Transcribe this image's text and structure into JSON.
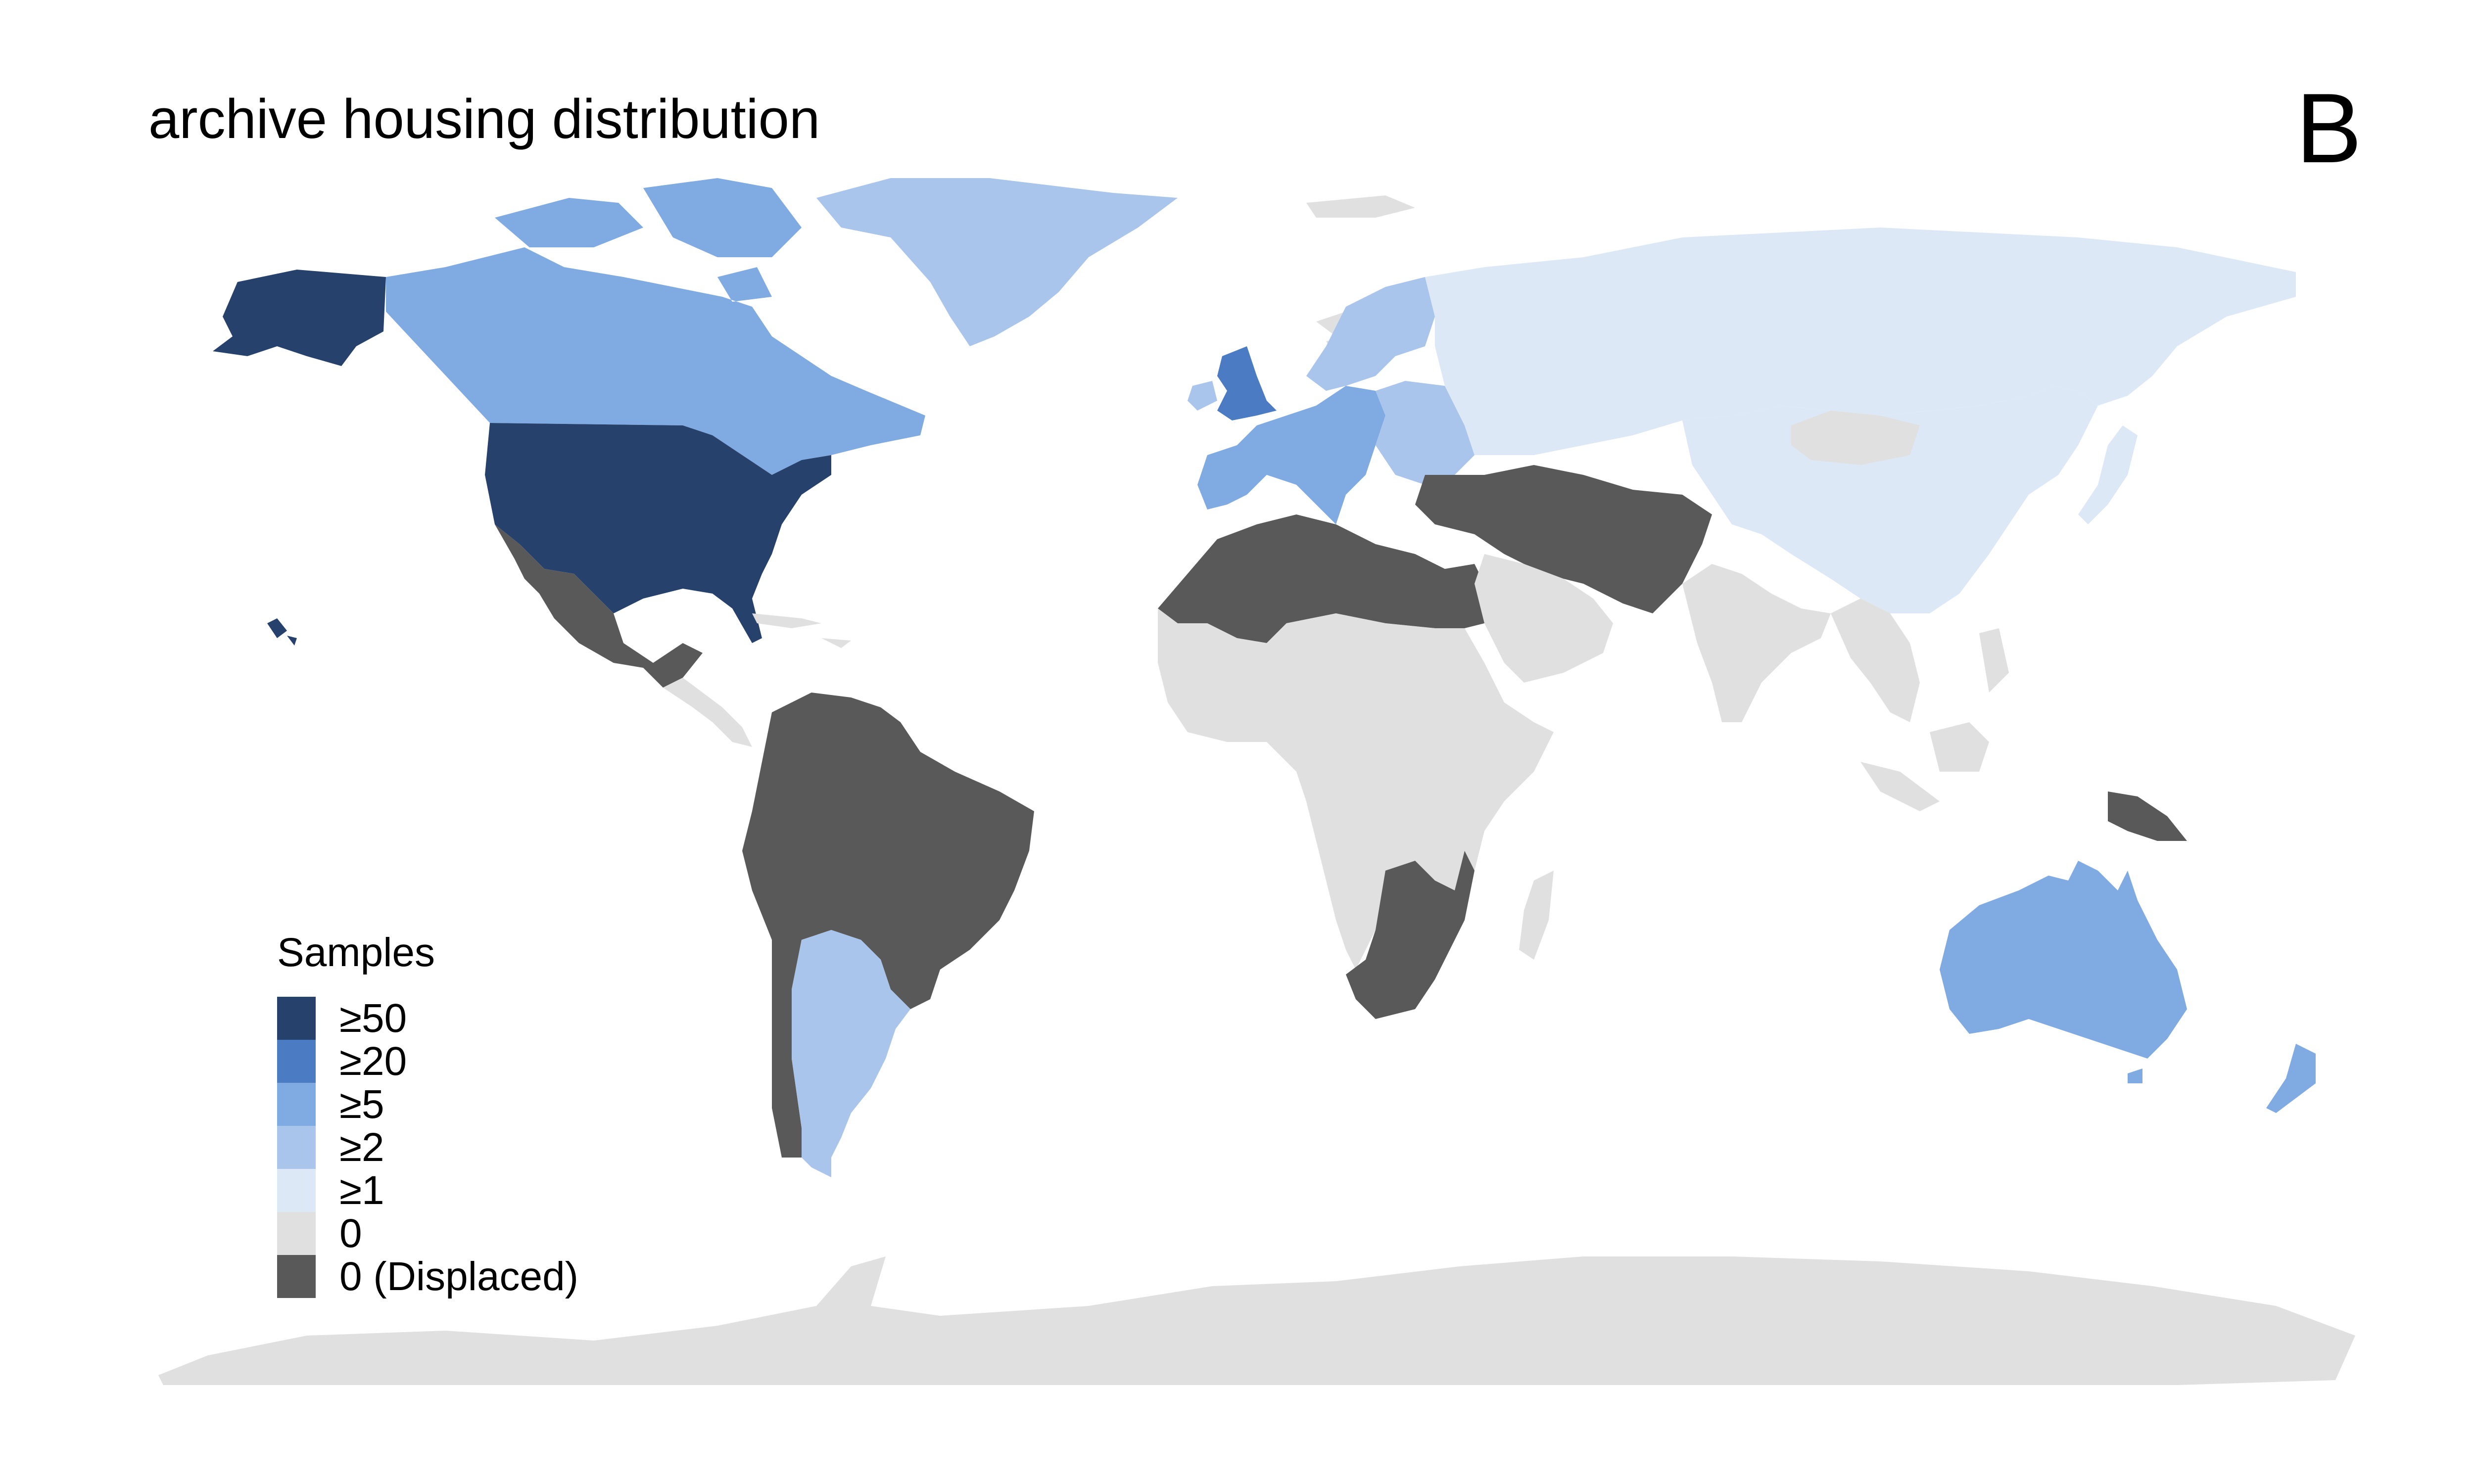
{
  "title": "archive housing distribution",
  "panel_label": "B",
  "legend": {
    "title": "Samples",
    "items": [
      {
        "label": "≥50",
        "color": "#26416b"
      },
      {
        "label": "≥20",
        "color": "#4a7bc3"
      },
      {
        "label": "≥5",
        "color": "#80aae2"
      },
      {
        "label": "≥2",
        "color": "#a9c5eb"
      },
      {
        "label": "≥1",
        "color": "#dde8f7"
      },
      {
        "label": "0",
        "color": "#e0e0e0"
      },
      {
        "label": "0 (Displaced)",
        "color": "#595959"
      }
    ]
  },
  "regions": [
    {
      "name": "alaska",
      "category": "≥50"
    },
    {
      "name": "usa",
      "category": "≥50"
    },
    {
      "name": "canada",
      "category": "≥5"
    },
    {
      "name": "greenland",
      "category": "≥2"
    },
    {
      "name": "mexico",
      "category": "0 (Displaced)"
    },
    {
      "name": "central-america",
      "category": "0"
    },
    {
      "name": "south-america",
      "category": "0 (Displaced)"
    },
    {
      "name": "argentina",
      "category": "≥2"
    },
    {
      "name": "uk",
      "category": "≥20"
    },
    {
      "name": "ireland",
      "category": "≥2"
    },
    {
      "name": "western-europe",
      "category": "≥5"
    },
    {
      "name": "scandinavia",
      "category": "≥2"
    },
    {
      "name": "eastern-europe",
      "category": "≥2"
    },
    {
      "name": "russia",
      "category": "≥1"
    },
    {
      "name": "china",
      "category": "≥1"
    },
    {
      "name": "japan",
      "category": "≥1"
    },
    {
      "name": "mongolia",
      "category": "0"
    },
    {
      "name": "north-africa-middle-east",
      "category": "0 (Displaced)"
    },
    {
      "name": "arabia",
      "category": "0"
    },
    {
      "name": "africa",
      "category": "0"
    },
    {
      "name": "southern-africa",
      "category": "0 (Displaced)"
    },
    {
      "name": "madagascar",
      "category": "0"
    },
    {
      "name": "india",
      "category": "0"
    },
    {
      "name": "southeast-asia",
      "category": "0"
    },
    {
      "name": "papua-new-guinea",
      "category": "0 (Displaced)"
    },
    {
      "name": "australia",
      "category": "≥5"
    },
    {
      "name": "new-zealand",
      "category": "≥5"
    },
    {
      "name": "svalbard",
      "category": "0"
    },
    {
      "name": "antarctica",
      "category": "0"
    }
  ]
}
